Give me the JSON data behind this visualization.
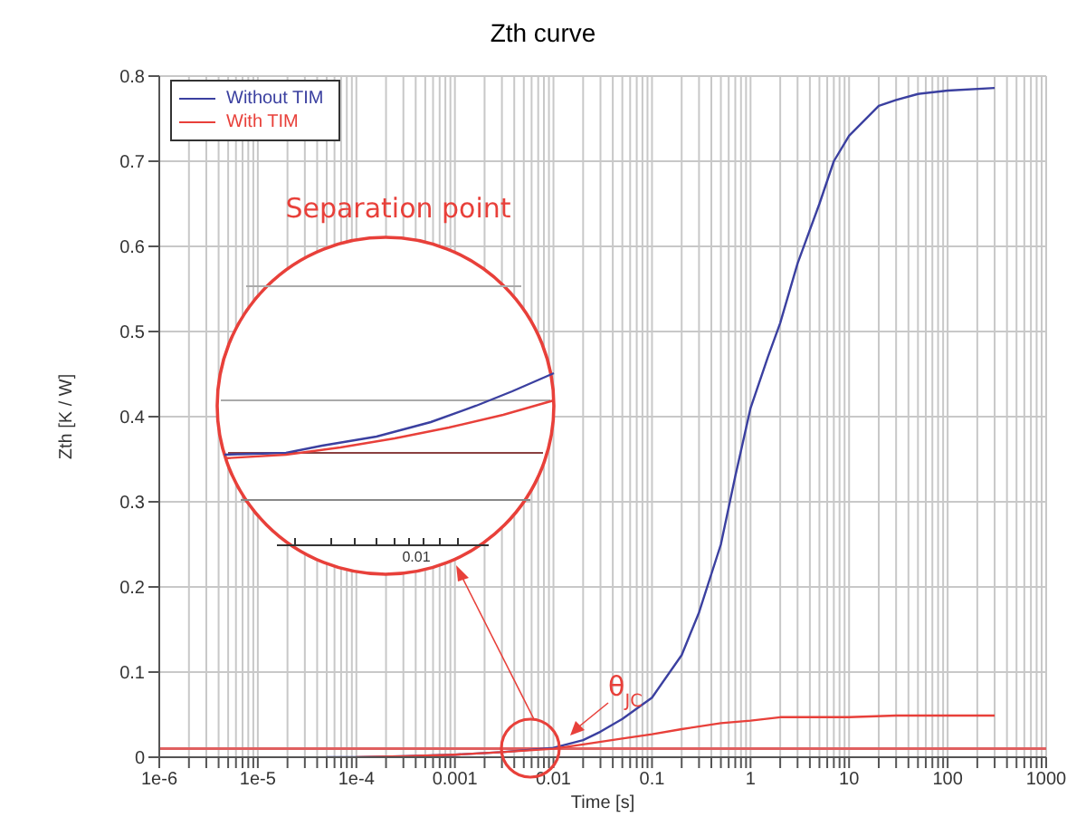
{
  "chart_data": {
    "type": "line",
    "title": "Zth curve",
    "xlabel": "Time [s]",
    "ylabel": "Zth [K / W]",
    "log": "x",
    "grid": true,
    "legend": "top left",
    "marker": "none",
    "line_style": "solid",
    "xlim": [
      1e-06,
      1000
    ],
    "ylim": [
      0,
      0.8
    ],
    "yticks": [
      0,
      0.1,
      0.2,
      0.3,
      0.4,
      0.5,
      0.6,
      0.7,
      0.8
    ],
    "xticks": [
      {
        "value": 1e-06,
        "label": "1e-6"
      },
      {
        "value": 2e-06,
        "label": null
      },
      {
        "value": 3e-06,
        "label": null
      },
      {
        "value": 4e-06,
        "label": null
      },
      {
        "value": 5e-06,
        "label": null
      },
      {
        "value": 6e-06,
        "label": null
      },
      {
        "value": 7e-06,
        "label": null
      },
      {
        "value": 8e-06,
        "label": null
      },
      {
        "value": 9e-06,
        "label": null
      },
      {
        "value": 1e-05,
        "label": "1e-5"
      },
      {
        "value": 2e-05,
        "label": null
      },
      {
        "value": 3e-05,
        "label": null
      },
      {
        "value": 4e-05,
        "label": null
      },
      {
        "value": 5e-05,
        "label": null
      },
      {
        "value": 6e-05,
        "label": null
      },
      {
        "value": 7e-05,
        "label": null
      },
      {
        "value": 8e-05,
        "label": null
      },
      {
        "value": 9e-05,
        "label": null
      },
      {
        "value": 0.0001,
        "label": "1e-4"
      },
      {
        "value": 0.0002,
        "label": null
      },
      {
        "value": 0.0003,
        "label": null
      },
      {
        "value": 0.0004,
        "label": null
      },
      {
        "value": 0.0005,
        "label": null
      },
      {
        "value": 0.0006,
        "label": null
      },
      {
        "value": 0.0007,
        "label": null
      },
      {
        "value": 0.0008,
        "label": null
      },
      {
        "value": 0.0009,
        "label": null
      },
      0.001,
      {
        "value": 0.002,
        "label": null
      },
      {
        "value": 0.003,
        "label": null
      },
      {
        "value": 0.004,
        "label": null
      },
      {
        "value": 0.005,
        "label": null
      },
      {
        "value": 0.006,
        "label": null
      },
      {
        "value": 0.007,
        "label": null
      },
      {
        "value": 0.008,
        "label": null
      },
      {
        "value": 0.009,
        "label": null
      },
      0.01,
      {
        "value": 0.02,
        "label": null
      },
      {
        "value": 0.03,
        "label": null
      },
      {
        "value": 0.04,
        "label": null
      },
      {
        "value": 0.05,
        "label": null
      },
      {
        "value": 0.06,
        "label": null
      },
      {
        "value": 0.07,
        "label": null
      },
      {
        "value": 0.08,
        "label": null
      },
      {
        "value": 0.09,
        "label": null
      },
      0.1,
      {
        "value": 0.2,
        "label": null
      },
      {
        "value": 0.3,
        "label": null
      },
      {
        "value": 0.4,
        "label": null
      },
      {
        "value": 0.5,
        "label": null
      },
      {
        "value": 0.6,
        "label": null
      },
      {
        "value": 0.7,
        "label": null
      },
      {
        "value": 0.8,
        "label": null
      },
      {
        "value": 0.9,
        "label": null
      },
      1,
      {
        "value": 2,
        "label": null
      },
      {
        "value": 3,
        "label": null
      },
      {
        "value": 4,
        "label": null
      },
      {
        "value": 5,
        "label": null
      },
      {
        "value": 6,
        "label": null
      },
      {
        "value": 7,
        "label": null
      },
      {
        "value": 8,
        "label": null
      },
      {
        "value": 9,
        "label": null
      },
      10,
      {
        "value": 20,
        "label": null
      },
      {
        "value": 30,
        "label": null
      },
      {
        "value": 40,
        "label": null
      },
      {
        "value": 50,
        "label": null
      },
      {
        "value": 60,
        "label": null
      },
      {
        "value": 70,
        "label": null
      },
      {
        "value": 80,
        "label": null
      },
      {
        "value": 90,
        "label": null
      },
      100,
      {
        "value": 200,
        "label": null
      },
      {
        "value": 300,
        "label": null
      },
      {
        "value": 400,
        "label": null
      },
      {
        "value": 500,
        "label": null
      },
      {
        "value": 600,
        "label": null
      },
      {
        "value": 700,
        "label": null
      },
      {
        "value": 800,
        "label": null
      },
      {
        "value": 900,
        "label": null
      },
      1000
    ],
    "series": [
      {
        "name": "Without TIM",
        "color": "#3b40a0",
        "x": [
          5e-05,
          0.0001,
          0.0003,
          0.001,
          0.003,
          0.01,
          0.02,
          0.03,
          0.05,
          0.1,
          0.2,
          0.3,
          0.5,
          0.7,
          1,
          1.5,
          2,
          3,
          5,
          7,
          10,
          20,
          30,
          50,
          100,
          300
        ],
        "values": [
          0,
          0,
          0.001,
          0.003,
          0.006,
          0.011,
          0.02,
          0.03,
          0.045,
          0.07,
          0.12,
          0.17,
          0.25,
          0.33,
          0.41,
          0.47,
          0.51,
          0.58,
          0.65,
          0.7,
          0.73,
          0.765,
          0.772,
          0.779,
          0.783,
          0.786
        ]
      },
      {
        "name": "With TIM",
        "color": "#e8403a",
        "x": [
          0.0001,
          0.0003,
          0.001,
          0.003,
          0.01,
          0.02,
          0.05,
          0.1,
          0.2,
          0.5,
          1,
          2,
          5,
          10,
          30,
          100,
          300
        ],
        "values": [
          0,
          0.001,
          0.003,
          0.006,
          0.01,
          0.015,
          0.022,
          0.027,
          0.033,
          0.04,
          0.043,
          0.047,
          0.047,
          0.047,
          0.049,
          0.049,
          0.049
        ]
      }
    ],
    "ref_lines": [
      {
        "axis": "y",
        "value": 0.01,
        "color": "#e06060"
      }
    ],
    "annotations": [
      "Separation point",
      "θ$_{JC}$",
      "0.01"
    ]
  }
}
